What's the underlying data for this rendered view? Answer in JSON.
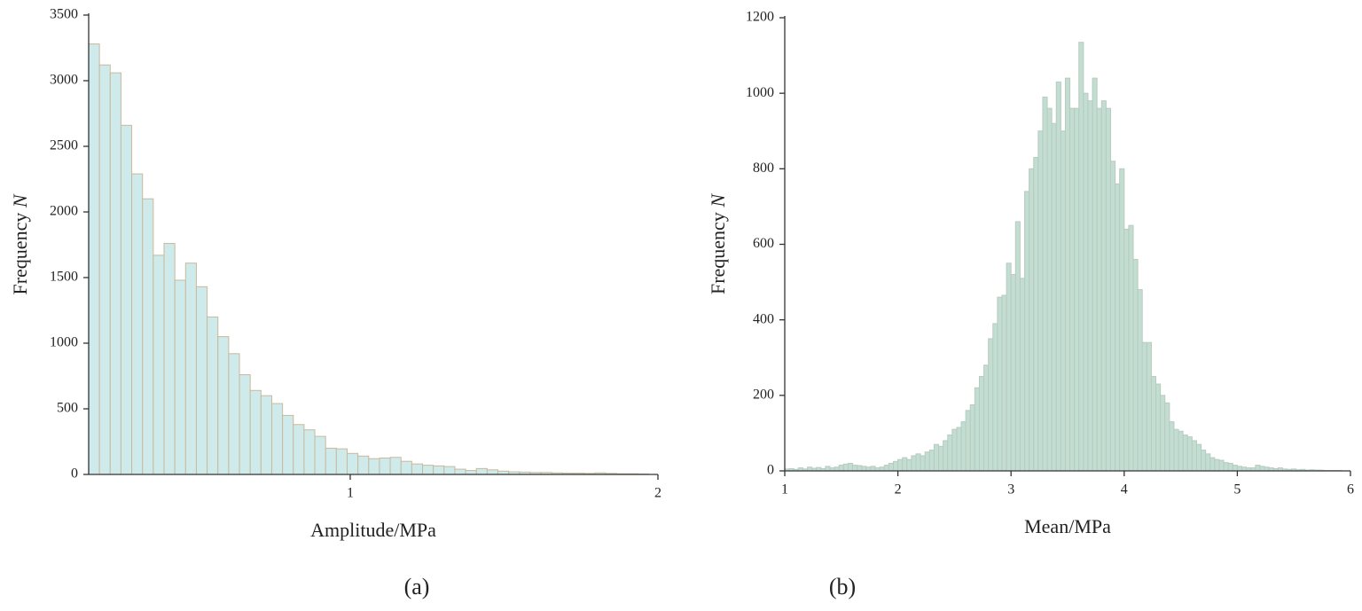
{
  "chart_data": [
    {
      "type": "histogram",
      "xlabel": "Amplitude/MPa",
      "ylabel": "Frequency",
      "ylabel_symbol": "N",
      "caption": "(a)",
      "color": "#cfeaea",
      "edge_color": "#c9b99c",
      "bins": [
        0.15,
        0.185,
        0.22,
        0.255,
        0.29,
        0.325,
        0.36,
        0.395,
        0.43,
        0.465,
        0.5,
        0.535,
        0.57,
        0.605,
        0.64,
        0.675,
        0.71,
        0.745,
        0.78,
        0.815,
        0.85,
        0.885,
        0.92,
        0.955,
        0.99,
        1.025,
        1.06,
        1.095,
        1.13,
        1.165,
        1.2,
        1.235,
        1.27,
        1.305,
        1.34,
        1.375,
        1.41,
        1.445,
        1.48,
        1.515,
        1.55,
        1.585,
        1.62,
        1.655,
        1.69,
        1.725,
        1.76,
        1.795,
        1.83,
        1.865,
        1.9,
        1.935,
        1.97
      ],
      "counts": [
        3280,
        3120,
        3060,
        2660,
        2290,
        2100,
        1670,
        1760,
        1480,
        1610,
        1430,
        1200,
        1050,
        920,
        760,
        640,
        600,
        540,
        450,
        380,
        340,
        290,
        200,
        195,
        160,
        140,
        120,
        125,
        130,
        100,
        80,
        70,
        65,
        60,
        40,
        30,
        45,
        35,
        25,
        20,
        18,
        15,
        15,
        12,
        10,
        10,
        8,
        12,
        8,
        5,
        5,
        3
      ],
      "xlim": [
        0.15,
        2
      ],
      "xticks": [
        1,
        2
      ],
      "ylim": [
        0,
        3500
      ],
      "yticks": [
        0,
        500,
        1000,
        1500,
        2000,
        2500,
        3000,
        3500
      ]
    },
    {
      "type": "histogram",
      "xlabel": "Mean/MPa",
      "ylabel": "Frequency",
      "ylabel_symbol": "N",
      "caption": "(b)",
      "color": "#c2ddd1",
      "edge_color": "#b9cbbf",
      "bins": [
        1,
        1.04,
        1.08,
        1.12,
        1.16,
        1.2,
        1.24,
        1.28,
        1.32,
        1.36,
        1.4,
        1.44,
        1.48,
        1.52,
        1.56,
        1.6,
        1.64,
        1.68,
        1.72,
        1.76,
        1.8,
        1.84,
        1.88,
        1.92,
        1.96,
        2,
        2.04,
        2.08,
        2.12,
        2.16,
        2.2,
        2.24,
        2.28,
        2.32,
        2.36,
        2.4,
        2.44,
        2.48,
        2.52,
        2.56,
        2.6,
        2.64,
        2.68,
        2.72,
        2.76,
        2.8,
        2.84,
        2.88,
        2.92,
        2.96,
        3,
        3.04,
        3.08,
        3.12,
        3.16,
        3.2,
        3.24,
        3.28,
        3.32,
        3.36,
        3.4,
        3.44,
        3.48,
        3.52,
        3.56,
        3.6,
        3.64,
        3.68,
        3.72,
        3.76,
        3.8,
        3.84,
        3.88,
        3.92,
        3.96,
        4,
        4.04,
        4.08,
        4.12,
        4.16,
        4.2,
        4.24,
        4.28,
        4.32,
        4.36,
        4.4,
        4.44,
        4.48,
        4.52,
        4.56,
        4.6,
        4.64,
        4.68,
        4.72,
        4.76,
        4.8,
        4.84,
        4.88,
        4.92,
        4.96,
        5,
        5.04,
        5.08,
        5.12,
        5.16,
        5.2,
        5.24,
        5.28,
        5.32,
        5.36,
        5.4,
        5.44,
        5.48,
        5.52,
        5.56,
        5.6,
        5.64,
        5.68,
        5.72,
        5.76,
        5.8,
        5.84,
        5.88,
        5.92,
        5.96,
        6
      ],
      "counts": [
        5,
        6,
        4,
        8,
        5,
        10,
        7,
        9,
        6,
        12,
        8,
        10,
        15,
        18,
        20,
        15,
        14,
        12,
        10,
        12,
        8,
        10,
        15,
        20,
        25,
        30,
        35,
        30,
        40,
        45,
        40,
        50,
        55,
        70,
        65,
        80,
        95,
        110,
        115,
        130,
        160,
        175,
        220,
        250,
        280,
        350,
        390,
        460,
        465,
        550,
        520,
        660,
        510,
        740,
        800,
        830,
        900,
        990,
        960,
        920,
        1030,
        900,
        1040,
        960,
        960,
        1135,
        1000,
        980,
        1040,
        960,
        980,
        960,
        820,
        760,
        800,
        640,
        650,
        560,
        480,
        340,
        340,
        250,
        230,
        200,
        180,
        130,
        110,
        105,
        95,
        90,
        80,
        70,
        55,
        45,
        35,
        30,
        28,
        22,
        20,
        15,
        12,
        10,
        8,
        8,
        15,
        12,
        10,
        8,
        6,
        8,
        5,
        4,
        5,
        3,
        4,
        2,
        3,
        2,
        2,
        1,
        1,
        1,
        1,
        0,
        0
      ],
      "xlim": [
        1,
        6
      ],
      "xticks": [
        1,
        2,
        3,
        4,
        5,
        6
      ],
      "ylim": [
        0,
        1200
      ],
      "yticks": [
        0,
        200,
        400,
        600,
        800,
        1000,
        1200
      ]
    }
  ]
}
